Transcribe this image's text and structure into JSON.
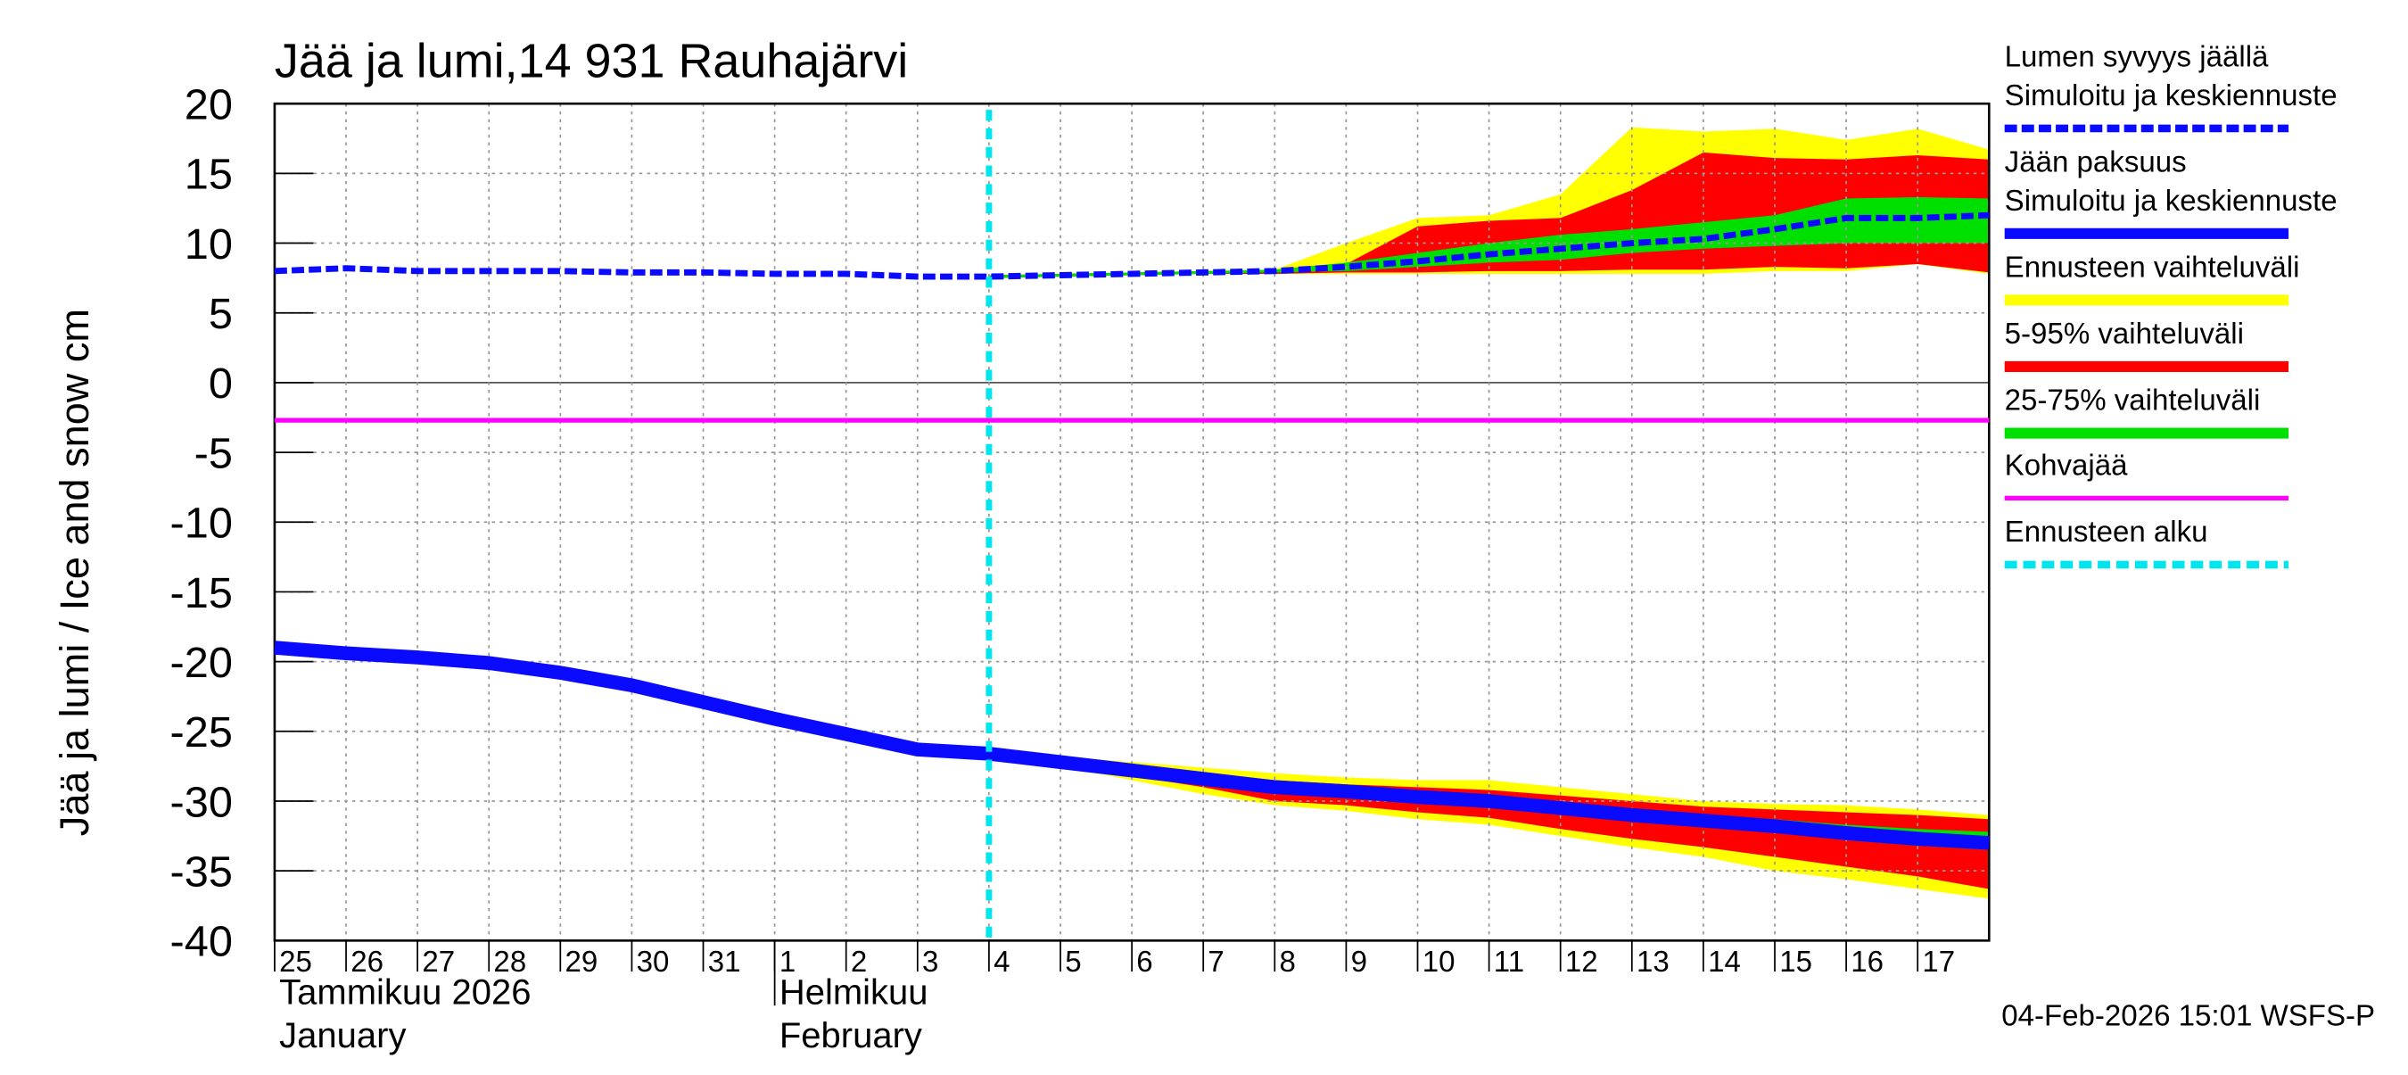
{
  "chart_data": {
    "type": "band-line",
    "title": "Jää ja lumi,14 931 Rauhajärvi",
    "y_label": "Jää ja lumi / Ice and snow    cm",
    "footer": "04-Feb-2026 15:01 WSFS-P",
    "categories": [
      "25",
      "26",
      "27",
      "28",
      "29",
      "30",
      "31",
      "1",
      "2",
      "3",
      "4",
      "5",
      "6",
      "7",
      "8",
      "9",
      "10",
      "11",
      "12",
      "13",
      "14",
      "15",
      "16",
      "17",
      null
    ],
    "months": [
      {
        "fi": "Tammikuu  2026",
        "en": "January",
        "from": "25"
      },
      {
        "fi": "Helmikuu",
        "en": "February",
        "from": "1"
      }
    ],
    "ylim": [
      -40,
      20
    ],
    "yticks": [
      20,
      15,
      10,
      5,
      0,
      -5,
      -10,
      -15,
      -20,
      -25,
      -30,
      -35,
      -40
    ],
    "grid": true,
    "bands": [
      {
        "name": "Ennusteen vaihteluväli",
        "color": "#ffff00",
        "snow": {
          "high": [
            null,
            null,
            null,
            null,
            null,
            null,
            null,
            null,
            null,
            null,
            7.7,
            7.8,
            7.9,
            8,
            8.1,
            10,
            11.8,
            12,
            13.5,
            18.3,
            18,
            18.2,
            17.4,
            18.2,
            16.7
          ],
          "low": [
            null,
            null,
            null,
            null,
            null,
            null,
            null,
            null,
            null,
            null,
            7.5,
            7.6,
            7.7,
            7.8,
            7.8,
            7.8,
            7.8,
            7.8,
            7.8,
            7.8,
            7.8,
            8,
            8,
            8.5,
            7.8
          ]
        },
        "ice": {
          "high": [
            null,
            null,
            null,
            null,
            null,
            null,
            null,
            null,
            null,
            null,
            -26.4,
            -26.8,
            -27.2,
            -27.6,
            -28,
            -28.3,
            -28.5,
            -28.5,
            -29,
            -29.5,
            -30,
            -30.2,
            -30.3,
            -30.6,
            -31
          ],
          "low": [
            null,
            null,
            null,
            null,
            null,
            null,
            null,
            null,
            null,
            null,
            -26.6,
            -27.5,
            -28.5,
            -29.5,
            -30.3,
            -30.7,
            -31.3,
            -31.7,
            -32.5,
            -33.3,
            -34,
            -35,
            -35.6,
            -36.3,
            -37
          ]
        }
      },
      {
        "name": "5-95% vaihteluväli",
        "color": "#ff0000",
        "snow": {
          "high": [
            null,
            null,
            null,
            null,
            null,
            null,
            null,
            null,
            null,
            null,
            7.7,
            7.8,
            7.9,
            8,
            8,
            8.5,
            11.2,
            11.6,
            11.8,
            13.8,
            16.5,
            16.1,
            16,
            16.3,
            16
          ],
          "low": [
            null,
            null,
            null,
            null,
            null,
            null,
            null,
            null,
            null,
            null,
            7.5,
            7.6,
            7.7,
            7.8,
            7.8,
            7.9,
            7.9,
            8,
            8,
            8.1,
            8.1,
            8.3,
            8.2,
            8.5,
            7.9
          ]
        },
        "ice": {
          "high": [
            null,
            null,
            null,
            null,
            null,
            null,
            null,
            null,
            null,
            null,
            -26.5,
            -27,
            -27.5,
            -28,
            -28.5,
            -28.8,
            -29,
            -29.2,
            -29.6,
            -30,
            -30.4,
            -30.6,
            -30.8,
            -31,
            -31.3
          ],
          "low": [
            null,
            null,
            null,
            null,
            null,
            null,
            null,
            null,
            null,
            null,
            -26.6,
            -27.3,
            -28.2,
            -29,
            -30,
            -30.3,
            -30.8,
            -31.2,
            -32,
            -32.7,
            -33.3,
            -34,
            -34.7,
            -35.4,
            -36.3
          ]
        }
      },
      {
        "name": "25-75% vaihteluväli",
        "color": "#00e000",
        "snow": {
          "high": [
            null,
            null,
            null,
            null,
            null,
            null,
            null,
            null,
            null,
            null,
            7.7,
            7.8,
            7.9,
            8,
            8.1,
            8.6,
            9.3,
            10,
            10.6,
            11,
            11.5,
            12,
            13.2,
            13.3,
            13.2
          ],
          "low": [
            null,
            null,
            null,
            null,
            null,
            null,
            null,
            null,
            null,
            null,
            7.5,
            7.6,
            7.7,
            7.8,
            7.9,
            8,
            8.3,
            8.6,
            8.8,
            9.3,
            9.6,
            9.8,
            10,
            10,
            10
          ]
        },
        "ice": {
          "high": [
            null,
            null,
            null,
            null,
            null,
            null,
            null,
            null,
            null,
            null,
            -26.5,
            -27.1,
            -27.6,
            -28.2,
            -28.7,
            -29,
            -29.4,
            -29.7,
            -30.1,
            -30.6,
            -31,
            -31.3,
            -31.7,
            -32,
            -32.2
          ],
          "low": [
            null,
            null,
            null,
            null,
            null,
            null,
            null,
            null,
            null,
            null,
            -26.6,
            -27.2,
            -27.9,
            -28.6,
            -29.2,
            -29.5,
            -30,
            -30.3,
            -30.8,
            -31.3,
            -31.7,
            -32.2,
            -32.8,
            -33.2,
            -33.5
          ]
        }
      }
    ],
    "series": [
      {
        "group": "Lumen syvyys jäällä",
        "name": "Simuloitu ja keskiennuste",
        "color": "#0a0aff",
        "dashed": true,
        "values": [
          8,
          8.2,
          8,
          8,
          8,
          7.9,
          7.9,
          7.8,
          7.8,
          7.6,
          7.6,
          7.7,
          7.8,
          7.9,
          8,
          8.3,
          8.7,
          9.2,
          9.6,
          10,
          10.3,
          11,
          11.8,
          11.8,
          12
        ]
      },
      {
        "group": "Jään paksuus",
        "name": "Simuloitu ja keskiennuste",
        "color": "#0a0aff",
        "dashed": false,
        "values": [
          -19,
          -19.4,
          -19.7,
          -20.1,
          -20.8,
          -21.7,
          -22.9,
          -24.1,
          -25.2,
          -26.3,
          -26.6,
          -27.2,
          -27.8,
          -28.4,
          -29,
          -29.3,
          -29.7,
          -30,
          -30.5,
          -31,
          -31.4,
          -31.8,
          -32.3,
          -32.7,
          -33
        ]
      }
    ],
    "kohvajaa": {
      "name": "Kohvajää",
      "color": "#ff00ff",
      "value": -2.7
    },
    "forecast_start": {
      "name": "Ennusteen alku",
      "color": "#00e5ee",
      "at": "4"
    }
  }
}
